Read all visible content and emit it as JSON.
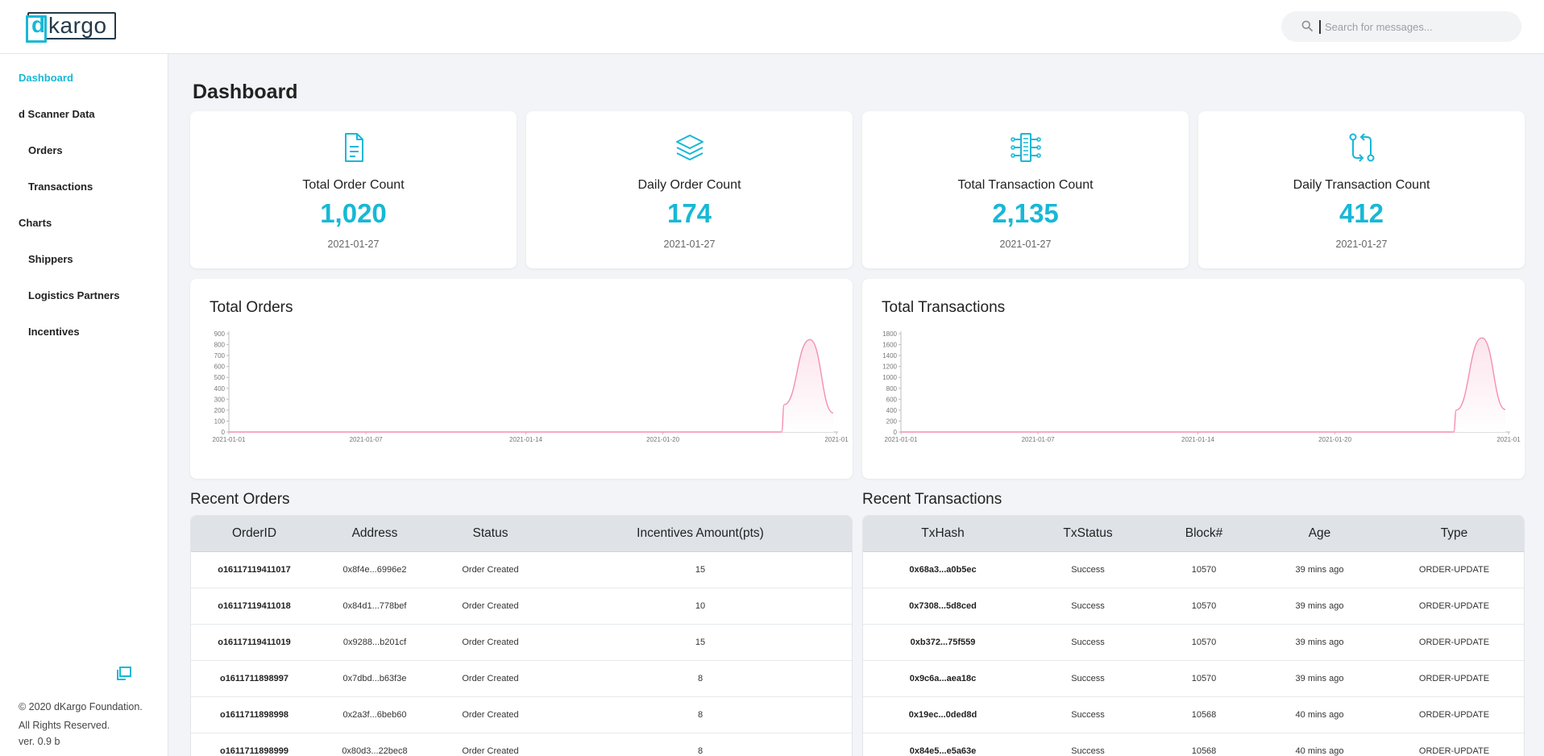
{
  "brand": {
    "logo_d": "d",
    "logo_rest": "kargo"
  },
  "search": {
    "placeholder": "Search for messages..."
  },
  "sidebar": {
    "items": [
      {
        "label": "Dashboard",
        "active": true
      },
      {
        "label": "d Scanner Data"
      },
      {
        "label": "Orders"
      },
      {
        "label": "Transactions"
      },
      {
        "label": "Charts"
      },
      {
        "label": "Shippers"
      },
      {
        "label": "Logistics Partners"
      },
      {
        "label": "Incentives"
      }
    ],
    "footer": {
      "line1": "© 2020 dKargo Foundation.",
      "line2": "All Rights Reserved.",
      "version": "ver. 0.9 b"
    }
  },
  "page": {
    "title": "Dashboard"
  },
  "stats": [
    {
      "icon": "document-icon",
      "label": "Total Order Count",
      "value": "1,020",
      "date": "2021-01-27"
    },
    {
      "icon": "layers-icon",
      "label": "Daily Order Count",
      "value": "174",
      "date": "2021-01-27"
    },
    {
      "icon": "circuit-icon",
      "label": "Total Transaction Count",
      "value": "2,135",
      "date": "2021-01-27"
    },
    {
      "icon": "swap-arrows-icon",
      "label": "Daily Transaction Count",
      "value": "412",
      "date": "2021-01-27"
    }
  ],
  "colors": {
    "accent": "#17b8d6",
    "chart_line": "#f48fb1",
    "chart_fill": "#fce4ec"
  },
  "chart_data": [
    {
      "type": "area",
      "title": "Total Orders",
      "x_ticks": [
        "2021-01-01",
        "2021-01-07",
        "2021-01-14",
        "2021-01-20",
        "2021-01"
      ],
      "y_ticks": [
        0,
        100,
        200,
        300,
        400,
        500,
        600,
        700,
        800,
        900
      ],
      "ylim": [
        0,
        900
      ],
      "x": [
        "2021-01-01",
        "2021-01-07",
        "2021-01-14",
        "2021-01-20",
        "2021-01-24",
        "2021-01-25",
        "2021-01-26",
        "2021-01-27"
      ],
      "values": [
        0,
        0,
        0,
        0,
        0,
        250,
        846,
        174
      ]
    },
    {
      "type": "area",
      "title": "Total Transactions",
      "x_ticks": [
        "2021-01-01",
        "2021-01-07",
        "2021-01-14",
        "2021-01-20",
        "2021-01"
      ],
      "y_ticks": [
        0,
        200,
        400,
        600,
        800,
        1000,
        1200,
        1400,
        1600,
        1800
      ],
      "ylim": [
        0,
        1800
      ],
      "x": [
        "2021-01-01",
        "2021-01-07",
        "2021-01-14",
        "2021-01-20",
        "2021-01-24",
        "2021-01-25",
        "2021-01-26",
        "2021-01-27"
      ],
      "values": [
        0,
        0,
        0,
        0,
        0,
        400,
        1723,
        412
      ]
    }
  ],
  "recent_orders": {
    "title": "Recent Orders",
    "columns": [
      "OrderID",
      "Address",
      "Status",
      "Incentives Amount(pts)"
    ],
    "rows": [
      [
        "o16117119411017",
        "0x8f4e...6996e2",
        "Order Created",
        "15"
      ],
      [
        "o16117119411018",
        "0x84d1...778bef",
        "Order Created",
        "10"
      ],
      [
        "o16117119411019",
        "0x9288...b201cf",
        "Order Created",
        "15"
      ],
      [
        "o1611711898997",
        "0x7dbd...b63f3e",
        "Order Created",
        "8"
      ],
      [
        "o1611711898998",
        "0x2a3f...6beb60",
        "Order Created",
        "8"
      ],
      [
        "o1611711898999",
        "0x80d3...22bec8",
        "Order Created",
        "8"
      ]
    ]
  },
  "recent_transactions": {
    "title": "Recent Transactions",
    "columns": [
      "TxHash",
      "TxStatus",
      "Block#",
      "Age",
      "Type"
    ],
    "rows": [
      [
        "0x68a3...a0b5ec",
        "Success",
        "10570",
        "39 mins ago",
        "ORDER-UPDATE"
      ],
      [
        "0x7308...5d8ced",
        "Success",
        "10570",
        "39 mins ago",
        "ORDER-UPDATE"
      ],
      [
        "0xb372...75f559",
        "Success",
        "10570",
        "39 mins ago",
        "ORDER-UPDATE"
      ],
      [
        "0x9c6a...aea18c",
        "Success",
        "10570",
        "39 mins ago",
        "ORDER-UPDATE"
      ],
      [
        "0x19ec...0ded8d",
        "Success",
        "10568",
        "40 mins ago",
        "ORDER-UPDATE"
      ],
      [
        "0x84e5...e5a63e",
        "Success",
        "10568",
        "40 mins ago",
        "ORDER-UPDATE"
      ]
    ]
  }
}
